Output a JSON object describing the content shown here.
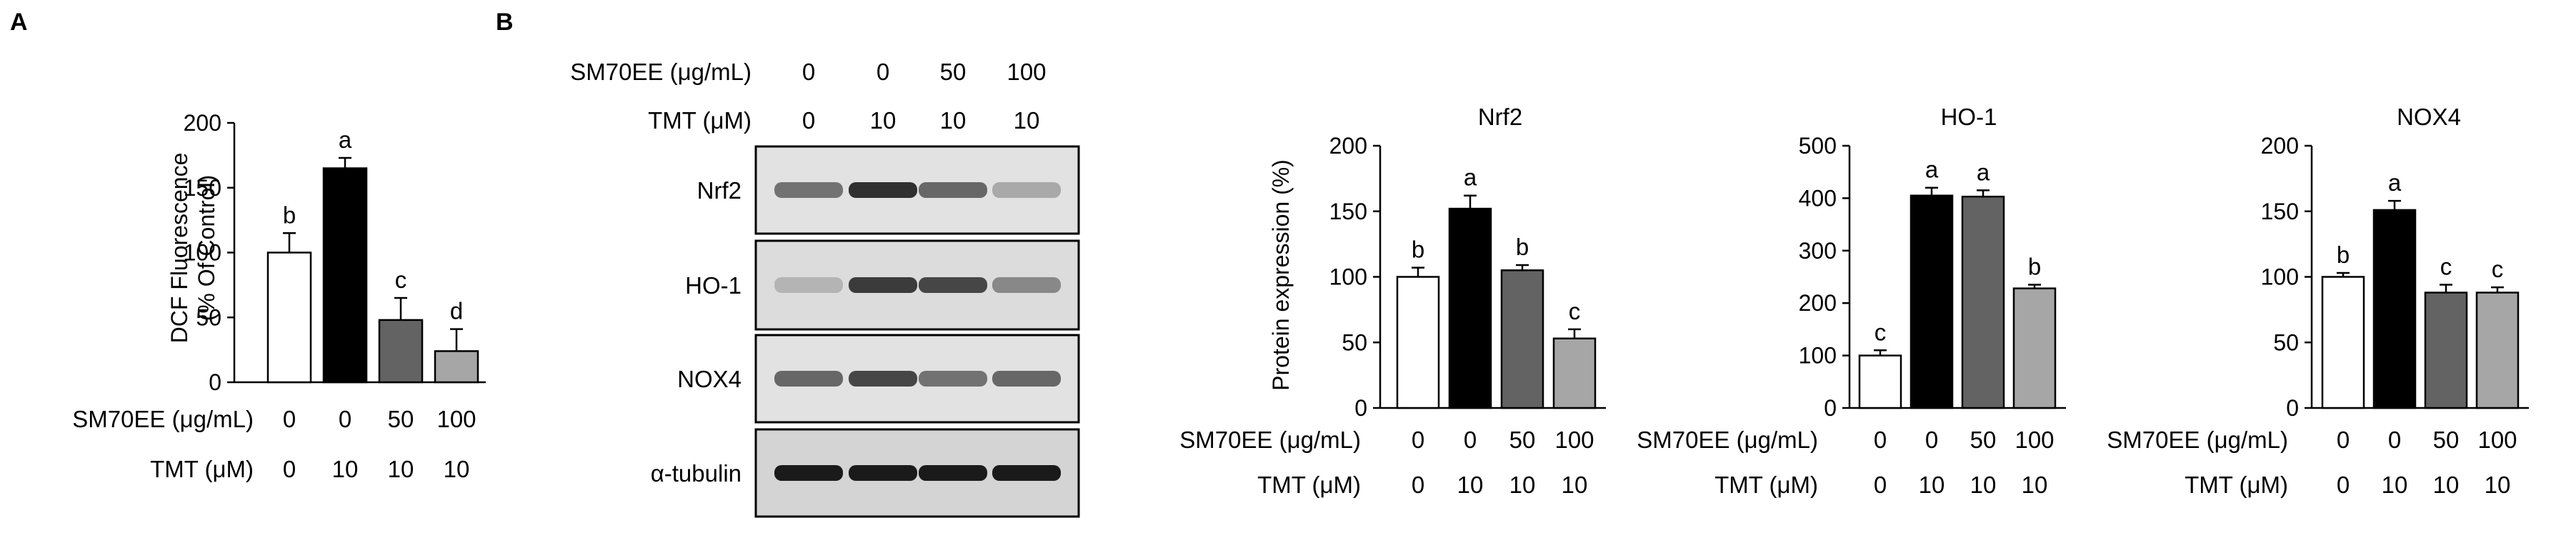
{
  "panels": [
    {
      "label": "A"
    },
    {
      "label": "B"
    }
  ],
  "row_labels": {
    "treatment": "SM70EE (μg/mL)",
    "toxin": "TMT (μM)"
  },
  "western_blot": {
    "sm70ee_values": [
      "0",
      "0",
      "50",
      "100"
    ],
    "tmt_values": [
      "0",
      "10",
      "10",
      "10"
    ],
    "proteins": [
      {
        "name": "Nrf2",
        "intensity": [
          0.55,
          0.85,
          0.6,
          0.3
        ]
      },
      {
        "name": "HO-1",
        "intensity": [
          0.25,
          0.8,
          0.75,
          0.45
        ]
      },
      {
        "name": "NOX4",
        "intensity": [
          0.6,
          0.75,
          0.55,
          0.6
        ]
      },
      {
        "name": "α-tubulin",
        "intensity": [
          0.95,
          0.95,
          0.95,
          0.95
        ]
      }
    ]
  },
  "bar_colors": [
    "#ffffff",
    "#000000",
    "#636363",
    "#a6a6a6"
  ],
  "chart_data": [
    {
      "type": "bar",
      "title": "",
      "ylabel_lines": [
        "DCF Fluorescence",
        "(%  Of Control)"
      ],
      "categories": [
        "1",
        "2",
        "3",
        "4"
      ],
      "sm70ee": [
        "0",
        "0",
        "50",
        "100"
      ],
      "tmt": [
        "0",
        "10",
        "10",
        "10"
      ],
      "values": [
        100,
        165,
        48,
        24
      ],
      "errors": [
        15,
        8,
        17,
        17
      ],
      "sig_letters": [
        "b",
        "a",
        "c",
        "d"
      ],
      "ylim": [
        0,
        200
      ],
      "yticks": [
        "0",
        "50",
        "100",
        "150",
        "200"
      ],
      "grid": false
    },
    {
      "type": "bar",
      "title": "Nrf2",
      "ylabel_lines": [
        "Protein expression (%)"
      ],
      "categories": [
        "1",
        "2",
        "3",
        "4"
      ],
      "sm70ee": [
        "0",
        "0",
        "50",
        "100"
      ],
      "tmt": [
        "0",
        "10",
        "10",
        "10"
      ],
      "values": [
        100,
        152,
        105,
        53
      ],
      "errors": [
        7,
        10,
        4,
        7
      ],
      "sig_letters": [
        "b",
        "a",
        "b",
        "c"
      ],
      "ylim": [
        0,
        200
      ],
      "yticks": [
        "0",
        "50",
        "100",
        "150",
        "200"
      ],
      "grid": false
    },
    {
      "type": "bar",
      "title": "HO-1",
      "ylabel_lines": [],
      "categories": [
        "1",
        "2",
        "3",
        "4"
      ],
      "sm70ee": [
        "0",
        "0",
        "50",
        "100"
      ],
      "tmt": [
        "0",
        "10",
        "10",
        "10"
      ],
      "values": [
        100,
        405,
        403,
        228
      ],
      "errors": [
        10,
        15,
        12,
        7
      ],
      "sig_letters": [
        "c",
        "a",
        "a",
        "b"
      ],
      "ylim": [
        0,
        500
      ],
      "yticks": [
        "0",
        "100",
        "200",
        "300",
        "400",
        "500"
      ],
      "grid": false
    },
    {
      "type": "bar",
      "title": "NOX4",
      "ylabel_lines": [],
      "categories": [
        "1",
        "2",
        "3",
        "4"
      ],
      "sm70ee": [
        "0",
        "0",
        "50",
        "100"
      ],
      "tmt": [
        "0",
        "10",
        "10",
        "10"
      ],
      "values": [
        100,
        151,
        88,
        88
      ],
      "errors": [
        3,
        7,
        6,
        4
      ],
      "sig_letters": [
        "b",
        "a",
        "c",
        "c"
      ],
      "ylim": [
        0,
        200
      ],
      "yticks": [
        "0",
        "50",
        "100",
        "150",
        "200"
      ],
      "grid": false
    }
  ]
}
